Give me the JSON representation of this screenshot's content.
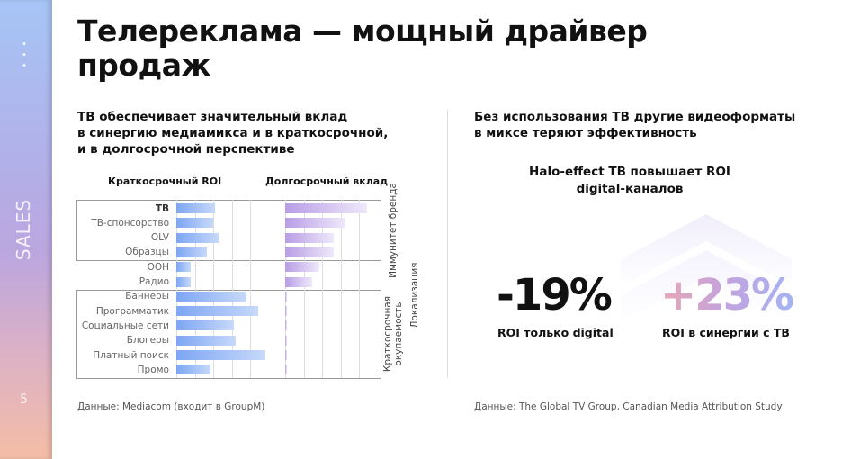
{
  "sidebar": {
    "dots": "• • •",
    "section": "SALES",
    "page": "5"
  },
  "title": "Телереклама — мощный драйвер продаж",
  "left": {
    "subtitle": [
      "ТВ обеспечивает значительный вклад",
      "в синергию медиамикса и в краткосрочной,",
      "и в долгосрочной перспективе"
    ],
    "source": "Данные: Mediacom (входит в GroupM)"
  },
  "right": {
    "subtitle": [
      "Без использования ТВ другие видеоформаты",
      "в миксе теряют эффективность"
    ],
    "halo_title": [
      "Halo-effect ТВ повышает ROI",
      "digital-каналов"
    ],
    "stat1": {
      "value": "-19%",
      "caption": "ROI только digital"
    },
    "stat2": {
      "value": "+23%",
      "caption": "ROI в синергии с ТВ"
    },
    "source": "Данные: The Global TV Group, Canadian Media Attribution Study"
  },
  "chart_data": {
    "type": "bar",
    "orientation": "horizontal",
    "series": [
      {
        "name": "Краткосрочный ROI",
        "color": "#7da6f3",
        "values": [
          2.1,
          2.0,
          2.3,
          1.65,
          0.8,
          0.8,
          3.8,
          4.4,
          3.1,
          3.2,
          4.8,
          1.85
        ]
      },
      {
        "name": "Долгосрочный вклад",
        "color": "#b89de6",
        "values": [
          4.4,
          3.25,
          2.6,
          2.6,
          1.85,
          1.45,
          0.1,
          0.1,
          0.1,
          0.1,
          0.1,
          0.1
        ]
      }
    ],
    "categories": [
      "ТВ",
      "ТВ-спонсорство",
      "OLV",
      "Образцы",
      "OOH",
      "Радио",
      "Баннеры",
      "Программатик",
      "Социальные сети",
      "Блогеры",
      "Платный поиск",
      "Промо"
    ],
    "groups": [
      {
        "label": "Иммунитет бренда"
      },
      {
        "label": "Локализация"
      },
      {
        "label": "Краткосрочная окупаемость"
      }
    ],
    "grid": true
  }
}
